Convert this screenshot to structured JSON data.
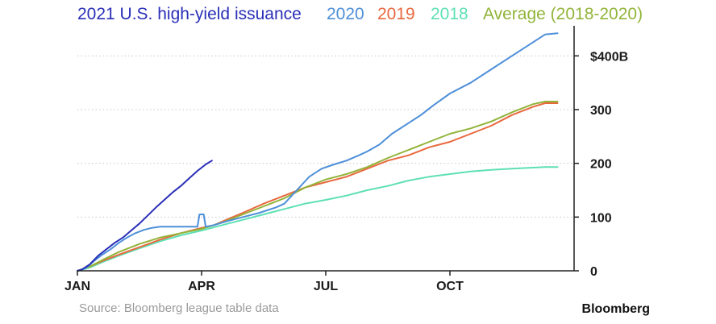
{
  "chart_data": {
    "type": "line",
    "x_unit": "month of year",
    "xlim": [
      0,
      12
    ],
    "ylim": [
      0,
      450
    ],
    "grid": true,
    "legend_position": "top",
    "x_ticks": [
      {
        "label": "JAN",
        "value": 0
      },
      {
        "label": "APR",
        "value": 3
      },
      {
        "label": "JUL",
        "value": 6
      },
      {
        "label": "OCT",
        "value": 9
      }
    ],
    "y_ticks": [
      {
        "label": "0",
        "value": 0
      },
      {
        "label": "100",
        "value": 100
      },
      {
        "label": "200",
        "value": 200
      },
      {
        "label": "300",
        "value": 300
      },
      {
        "label": "$400B",
        "value": 400
      }
    ],
    "series": [
      {
        "name": "2021 U.S. high-yield issuance",
        "color": "#2a2fb8",
        "points": [
          [
            0,
            0
          ],
          [
            0.1,
            2
          ],
          [
            0.3,
            12
          ],
          [
            0.5,
            28
          ],
          [
            0.7,
            40
          ],
          [
            0.9,
            52
          ],
          [
            1.1,
            62
          ],
          [
            1.3,
            75
          ],
          [
            1.5,
            88
          ],
          [
            1.7,
            103
          ],
          [
            1.9,
            118
          ],
          [
            2.1,
            132
          ],
          [
            2.3,
            146
          ],
          [
            2.5,
            158
          ],
          [
            2.7,
            172
          ],
          [
            2.9,
            186
          ],
          [
            3.1,
            198
          ],
          [
            3.25,
            205
          ]
        ]
      },
      {
        "name": "2020",
        "color": "#4d8fd9",
        "points": [
          [
            0,
            0
          ],
          [
            0.2,
            5
          ],
          [
            0.4,
            18
          ],
          [
            0.6,
            30
          ],
          [
            0.8,
            40
          ],
          [
            1.0,
            52
          ],
          [
            1.2,
            62
          ],
          [
            1.4,
            70
          ],
          [
            1.6,
            76
          ],
          [
            1.8,
            80
          ],
          [
            2.0,
            82
          ],
          [
            2.2,
            82
          ],
          [
            2.4,
            82
          ],
          [
            2.6,
            82
          ],
          [
            2.8,
            82
          ],
          [
            2.9,
            82
          ],
          [
            2.95,
            105
          ],
          [
            3.05,
            105
          ],
          [
            3.1,
            82
          ],
          [
            3.3,
            85
          ],
          [
            3.6,
            92
          ],
          [
            4.0,
            100
          ],
          [
            4.4,
            108
          ],
          [
            4.8,
            118
          ],
          [
            5.0,
            125
          ],
          [
            5.3,
            150
          ],
          [
            5.6,
            175
          ],
          [
            5.9,
            190
          ],
          [
            6.2,
            198
          ],
          [
            6.5,
            205
          ],
          [
            6.8,
            215
          ],
          [
            7.0,
            222
          ],
          [
            7.3,
            235
          ],
          [
            7.6,
            255
          ],
          [
            8.0,
            275
          ],
          [
            8.3,
            290
          ],
          [
            8.6,
            308
          ],
          [
            9.0,
            330
          ],
          [
            9.5,
            350
          ],
          [
            10.0,
            375
          ],
          [
            10.5,
            400
          ],
          [
            11.0,
            425
          ],
          [
            11.3,
            440
          ],
          [
            11.6,
            442
          ]
        ]
      },
      {
        "name": "2019",
        "color": "#e8683e",
        "points": [
          [
            0,
            0
          ],
          [
            0.3,
            8
          ],
          [
            0.6,
            18
          ],
          [
            1.0,
            30
          ],
          [
            1.5,
            44
          ],
          [
            2.0,
            58
          ],
          [
            2.5,
            70
          ],
          [
            3.0,
            80
          ],
          [
            3.3,
            85
          ],
          [
            3.6,
            95
          ],
          [
            4.0,
            108
          ],
          [
            4.5,
            125
          ],
          [
            5.0,
            140
          ],
          [
            5.5,
            155
          ],
          [
            6.0,
            165
          ],
          [
            6.5,
            175
          ],
          [
            7.0,
            190
          ],
          [
            7.5,
            205
          ],
          [
            8.0,
            215
          ],
          [
            8.5,
            230
          ],
          [
            9.0,
            240
          ],
          [
            9.5,
            255
          ],
          [
            10.0,
            270
          ],
          [
            10.5,
            290
          ],
          [
            11.0,
            305
          ],
          [
            11.3,
            312
          ],
          [
            11.6,
            312
          ]
        ]
      },
      {
        "name": "2018",
        "color": "#5ee0b4",
        "points": [
          [
            0,
            0
          ],
          [
            0.3,
            6
          ],
          [
            0.6,
            16
          ],
          [
            1.0,
            28
          ],
          [
            1.5,
            42
          ],
          [
            2.0,
            55
          ],
          [
            2.5,
            66
          ],
          [
            3.0,
            75
          ],
          [
            3.5,
            85
          ],
          [
            4.0,
            95
          ],
          [
            4.5,
            105
          ],
          [
            5.0,
            115
          ],
          [
            5.5,
            125
          ],
          [
            6.0,
            132
          ],
          [
            6.5,
            140
          ],
          [
            7.0,
            150
          ],
          [
            7.5,
            158
          ],
          [
            8.0,
            168
          ],
          [
            8.5,
            175
          ],
          [
            9.0,
            180
          ],
          [
            9.5,
            185
          ],
          [
            10.0,
            188
          ],
          [
            10.5,
            190
          ],
          [
            11.0,
            192
          ],
          [
            11.3,
            193
          ],
          [
            11.6,
            193
          ]
        ]
      },
      {
        "name": "Average (2018-2020)",
        "color": "#92b43a",
        "points": [
          [
            0,
            0
          ],
          [
            0.3,
            8
          ],
          [
            0.6,
            20
          ],
          [
            1.0,
            35
          ],
          [
            1.5,
            50
          ],
          [
            2.0,
            62
          ],
          [
            2.5,
            70
          ],
          [
            3.0,
            78
          ],
          [
            3.5,
            90
          ],
          [
            4.0,
            105
          ],
          [
            4.5,
            120
          ],
          [
            5.0,
            135
          ],
          [
            5.5,
            155
          ],
          [
            6.0,
            170
          ],
          [
            6.5,
            180
          ],
          [
            7.0,
            193
          ],
          [
            7.5,
            210
          ],
          [
            8.0,
            225
          ],
          [
            8.5,
            240
          ],
          [
            9.0,
            255
          ],
          [
            9.5,
            265
          ],
          [
            10.0,
            278
          ],
          [
            10.5,
            295
          ],
          [
            11.0,
            310
          ],
          [
            11.3,
            315
          ],
          [
            11.6,
            315
          ]
        ]
      }
    ]
  },
  "footer": {
    "source": "Source: Bloomberg league table data",
    "brand": "Bloomberg"
  }
}
